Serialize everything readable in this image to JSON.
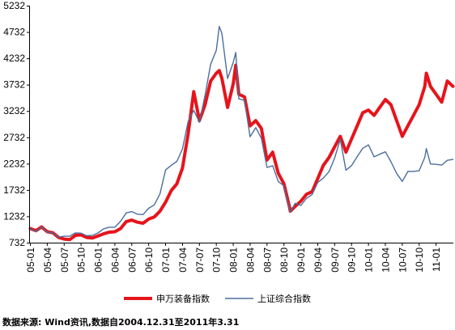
{
  "chart_data": {
    "type": "line",
    "title": "",
    "xlabel": "",
    "ylabel": "",
    "ylim": [
      732,
      5232
    ],
    "yticks": [
      732,
      1232,
      1732,
      2232,
      2732,
      3232,
      3732,
      4232,
      4732,
      5232
    ],
    "xlim": [
      "2004-12-31",
      "2011-03-31"
    ],
    "xticks": [
      "05-01",
      "05-04",
      "05-07",
      "05-10",
      "06-01",
      "06-04",
      "06-07",
      "06-10",
      "07-01",
      "07-04",
      "07-07",
      "07-10",
      "08-01",
      "08-04",
      "08-07",
      "08-10",
      "09-01",
      "09-04",
      "09-07",
      "09-10",
      "10-01",
      "10-04",
      "10-07",
      "10-10",
      "11-01"
    ],
    "grid": false,
    "legend_position": "bottom",
    "x": [
      "2004-12-31",
      "2005-01-31",
      "2005-02-28",
      "2005-03-31",
      "2005-04-30",
      "2005-05-31",
      "2005-06-30",
      "2005-07-31",
      "2005-08-31",
      "2005-09-30",
      "2005-10-31",
      "2005-11-30",
      "2005-12-31",
      "2006-01-31",
      "2006-02-28",
      "2006-03-31",
      "2006-04-30",
      "2006-05-31",
      "2006-06-30",
      "2006-07-31",
      "2006-08-31",
      "2006-09-30",
      "2006-10-31",
      "2006-11-30",
      "2006-12-31",
      "2007-01-31",
      "2007-02-28",
      "2007-03-31",
      "2007-04-30",
      "2007-05-31",
      "2007-06-30",
      "2007-07-31",
      "2007-08-31",
      "2007-09-30",
      "2007-10-16",
      "2007-10-31",
      "2007-11-30",
      "2007-12-31",
      "2008-01-14",
      "2008-01-31",
      "2008-02-29",
      "2008-03-31",
      "2008-04-30",
      "2008-05-31",
      "2008-06-30",
      "2008-07-31",
      "2008-08-31",
      "2008-09-30",
      "2008-10-31",
      "2008-11-04",
      "2008-11-30",
      "2008-12-31",
      "2009-01-31",
      "2009-02-28",
      "2009-03-31",
      "2009-04-30",
      "2009-05-31",
      "2009-06-30",
      "2009-07-31",
      "2009-08-31",
      "2009-09-30",
      "2009-10-31",
      "2009-11-30",
      "2009-12-31",
      "2010-01-31",
      "2010-02-28",
      "2010-03-31",
      "2010-04-30",
      "2010-05-31",
      "2010-06-30",
      "2010-07-31",
      "2010-08-31",
      "2010-09-30",
      "2010-10-31",
      "2010-11-08",
      "2010-11-30",
      "2010-12-31",
      "2011-01-31",
      "2011-02-28",
      "2011-03-31"
    ],
    "series": [
      {
        "name": "申万装备指数",
        "color": "#e6141b",
        "values": [
          1000,
          960,
          1030,
          940,
          920,
          830,
          800,
          790,
          870,
          880,
          830,
          820,
          860,
          900,
          930,
          940,
          1000,
          1130,
          1160,
          1120,
          1100,
          1180,
          1220,
          1330,
          1500,
          1720,
          1850,
          2150,
          2800,
          3600,
          3050,
          3350,
          3800,
          3950,
          4000,
          3850,
          3300,
          3750,
          4100,
          3550,
          3500,
          2950,
          3050,
          2900,
          2300,
          2450,
          2050,
          1850,
          1400,
          1330,
          1420,
          1520,
          1650,
          1700,
          1950,
          2200,
          2350,
          2550,
          2750,
          2450,
          2700,
          2950,
          3200,
          3250,
          3150,
          3300,
          3450,
          3350,
          3050,
          2750,
          2950,
          3150,
          3350,
          3700,
          3950,
          3700,
          3550,
          3400,
          3800,
          3700
        ]
      },
      {
        "name": "上证综合指数",
        "color": "#4b6e9c",
        "values": [
          1000,
          941,
          1032,
          933,
          915,
          837,
          853,
          855,
          918,
          912,
          862,
          868,
          917,
          994,
          1026,
          1025,
          1137,
          1296,
          1321,
          1273,
          1265,
          1384,
          1451,
          1658,
          2113,
          2200,
          2276,
          2514,
          3034,
          3246,
          3018,
          3532,
          4122,
          4386,
          4837,
          4703,
          3848,
          4156,
          4342,
          3462,
          3434,
          2743,
          2917,
          2712,
          2161,
          2193,
          1893,
          1811,
          1366,
          1314,
          1478,
          1438,
          1573,
          1645,
          1874,
          1957,
          2080,
          2337,
          2695,
          2107,
          2195,
          2366,
          2524,
          2589,
          2361,
          2410,
          2457,
          2268,
          2048,
          1894,
          2084,
          2085,
          2098,
          2353,
          2517,
          2227,
          2218,
          2205,
          2295,
          2313
        ]
      }
    ]
  },
  "source_note": "数据来源: Wind资讯,数据自2004.12.31至2011年3.31"
}
